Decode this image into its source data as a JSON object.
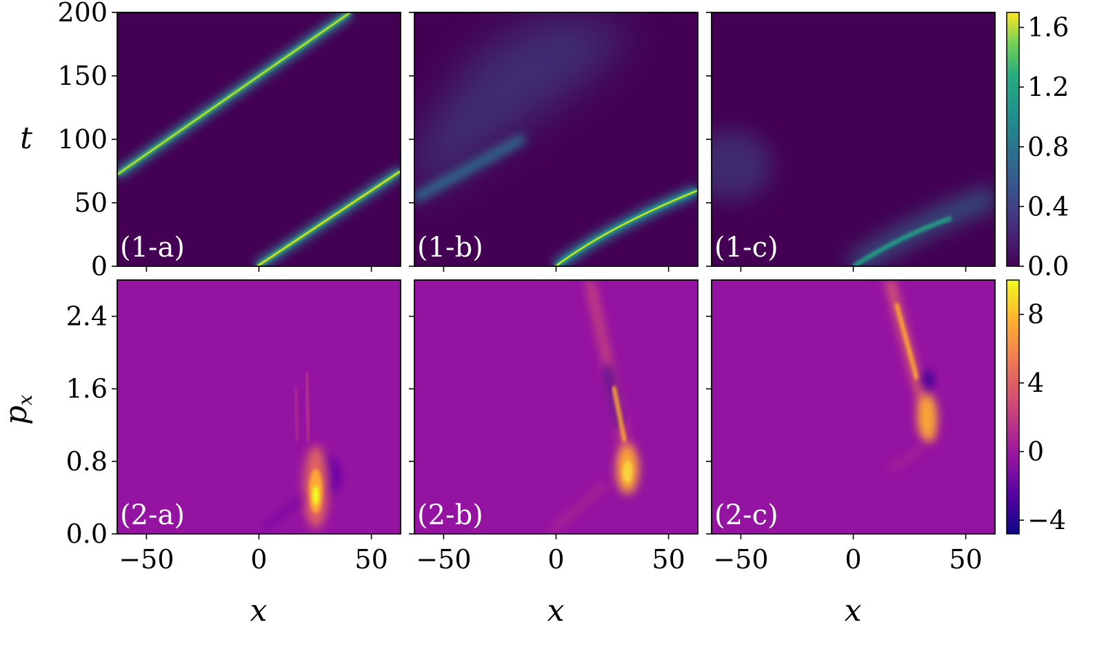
{
  "chart_data": {
    "type": "heatmap",
    "x_axis": {
      "label": "x",
      "range": [
        -63,
        63
      ],
      "ticks": [
        -50,
        0,
        50
      ],
      "tick_labels": [
        "−50",
        "0",
        "50"
      ]
    },
    "rows": [
      {
        "y_axis": {
          "label": "t",
          "range": [
            0,
            200
          ],
          "ticks": [
            0,
            50,
            100,
            150,
            200
          ],
          "tick_labels": [
            "0",
            "50",
            "100",
            "150",
            "200"
          ]
        },
        "colormap": "viridis",
        "colorbar": {
          "range": [
            0,
            1.7
          ],
          "ticks": [
            0,
            0.4,
            0.8,
            1.2,
            1.6
          ],
          "tick_labels": [
            "0.0",
            "0.4",
            "0.8",
            "1.2",
            "1.6"
          ]
        },
        "panels": [
          {
            "label": "(1-a)"
          },
          {
            "label": "(1-b)"
          },
          {
            "label": "(1-c)"
          }
        ]
      },
      {
        "y_axis": {
          "label": "p",
          "label_sub": "x",
          "range": [
            0,
            2.8
          ],
          "ticks": [
            0,
            0.8,
            1.6,
            2.4
          ],
          "tick_labels": [
            "0.0",
            "0.8",
            "1.6",
            "2.4"
          ]
        },
        "colormap": "plasma",
        "colorbar": {
          "range": [
            -4.8,
            10
          ],
          "ticks": [
            -4,
            0,
            4,
            8
          ],
          "tick_labels": [
            "−4",
            "0",
            "4",
            "8"
          ]
        },
        "panels": [
          {
            "label": "(2-a)"
          },
          {
            "label": "(2-b)"
          },
          {
            "label": "(2-c)"
          }
        ]
      }
    ]
  }
}
